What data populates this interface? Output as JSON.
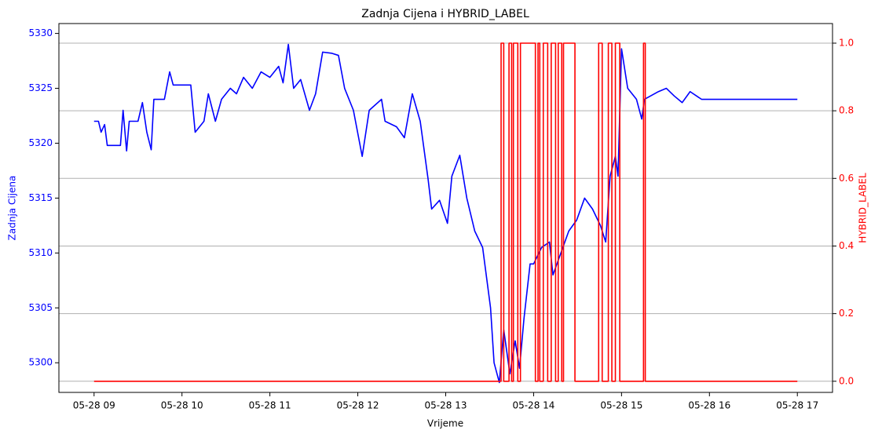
{
  "chart_data": {
    "type": "line",
    "title": "Zadnja Cijena i HYBRID_LABEL",
    "xlabel": "Vrijeme",
    "ylabel": "Zadnja Cijena",
    "y2label": "HYBRID_LABEL",
    "grid": "y2",
    "xlim": [
      8.6,
      17.4
    ],
    "xticks": [
      {
        "value": 9,
        "label": "05-28 09"
      },
      {
        "value": 10,
        "label": "05-28 10"
      },
      {
        "value": 11,
        "label": "05-28 11"
      },
      {
        "value": 12,
        "label": "05-28 12"
      },
      {
        "value": 13,
        "label": "05-28 13"
      },
      {
        "value": 14,
        "label": "05-28 14"
      },
      {
        "value": 15,
        "label": "05-28 15"
      },
      {
        "value": 16,
        "label": "05-28 16"
      },
      {
        "value": 17,
        "label": "05-28 17"
      }
    ],
    "ylim": [
      5297.3,
      5330.9
    ],
    "yticks": [
      5300,
      5305,
      5310,
      5315,
      5320,
      5325,
      5330
    ],
    "y2lim": [
      -0.033,
      1.058
    ],
    "y2ticks": [
      {
        "value": 0,
        "label": "0.0"
      },
      {
        "value": 0.2,
        "label": "0.2"
      },
      {
        "value": 0.4,
        "label": "0.4"
      },
      {
        "value": 0.6,
        "label": "0.6"
      },
      {
        "value": 0.8,
        "label": "0.8"
      },
      {
        "value": 1,
        "label": "1.0"
      }
    ],
    "series": [
      {
        "color": "#0000ff",
        "axis": "y",
        "x": [
          9,
          9.05,
          9.08,
          9.12,
          9.15,
          9.3,
          9.33,
          9.37,
          9.4,
          9.5,
          9.55,
          9.6,
          9.65,
          9.68,
          9.8,
          9.86,
          9.9,
          10.1,
          10.15,
          10.2,
          10.25,
          10.3,
          10.38,
          10.45,
          10.55,
          10.62,
          10.7,
          10.8,
          10.9,
          11.0,
          11.1,
          11.15,
          11.21,
          11.27,
          11.35,
          11.45,
          11.52,
          11.6,
          11.7,
          11.78,
          11.85,
          11.95,
          12.05,
          12.13,
          12.27,
          12.31,
          12.44,
          12.53,
          12.62,
          12.71,
          12.8,
          12.84,
          12.93,
          13.02,
          13.07,
          13.16,
          13.24,
          13.33,
          13.42,
          13.51,
          13.55,
          13.61,
          13.66,
          13.73,
          13.79,
          13.84,
          13.89,
          13.96,
          14.0,
          14.09,
          14.18,
          14.22,
          14.31,
          14.4,
          14.49,
          14.58,
          14.67,
          14.76,
          14.82,
          14.87,
          14.93,
          14.96,
          15.0,
          15.07,
          15.17,
          15.23,
          15.26,
          15.42,
          15.51,
          15.6,
          15.69,
          15.78,
          15.91,
          17.0
        ],
        "values": [
          5322,
          5322,
          5321,
          5321.7,
          5319.8,
          5319.8,
          5323,
          5319.3,
          5322,
          5322,
          5323.7,
          5321,
          5319.4,
          5324,
          5324,
          5326.5,
          5325.3,
          5325.3,
          5321,
          5321.5,
          5322,
          5324.5,
          5322,
          5324,
          5325,
          5324.5,
          5326,
          5325,
          5326.5,
          5326,
          5327,
          5325.5,
          5329,
          5325,
          5325.8,
          5323,
          5324.5,
          5328.3,
          5328.2,
          5328,
          5325,
          5323,
          5318.8,
          5323,
          5324,
          5322,
          5321.5,
          5320.5,
          5324.5,
          5322,
          5316.7,
          5314,
          5314.8,
          5312.7,
          5317,
          5318.9,
          5315,
          5312,
          5310.5,
          5305,
          5300,
          5298.2,
          5303,
          5299,
          5302,
          5299.5,
          5304,
          5309,
          5309,
          5310.5,
          5311,
          5308,
          5310,
          5312,
          5313,
          5315,
          5314,
          5312.5,
          5311,
          5317,
          5318.8,
          5317,
          5328.6,
          5325,
          5324,
          5322.2,
          5324,
          5324.7,
          5325,
          5324.3,
          5323.7,
          5324.7,
          5324,
          5324
        ]
      },
      {
        "color": "#ff0000",
        "axis": "y2",
        "x": [
          9,
          13.63,
          13.63,
          13.66,
          13.66,
          13.72,
          13.72,
          13.75,
          13.75,
          13.77,
          13.77,
          13.82,
          13.82,
          13.85,
          13.85,
          14.02,
          14.02,
          14.05,
          14.05,
          14.07,
          14.07,
          14.11,
          14.11,
          14.16,
          14.16,
          14.2,
          14.2,
          14.25,
          14.25,
          14.28,
          14.28,
          14.32,
          14.32,
          14.34,
          14.34,
          14.47,
          14.47,
          14.74,
          14.74,
          14.78,
          14.78,
          14.85,
          14.85,
          14.89,
          14.89,
          14.93,
          14.93,
          14.98,
          14.98,
          15.25,
          15.25,
          15.27,
          15.27,
          17
        ],
        "values": [
          0,
          0,
          1,
          1,
          0,
          0,
          1,
          1,
          0,
          0,
          1,
          1,
          0,
          0,
          1,
          1,
          0,
          0,
          1,
          1,
          0,
          0,
          1,
          1,
          0,
          0,
          1,
          1,
          0,
          0,
          1,
          1,
          0,
          0,
          1,
          1,
          0,
          0,
          1,
          1,
          0,
          0,
          1,
          1,
          0,
          0,
          1,
          1,
          0,
          0,
          1,
          1,
          0,
          0
        ]
      }
    ]
  }
}
